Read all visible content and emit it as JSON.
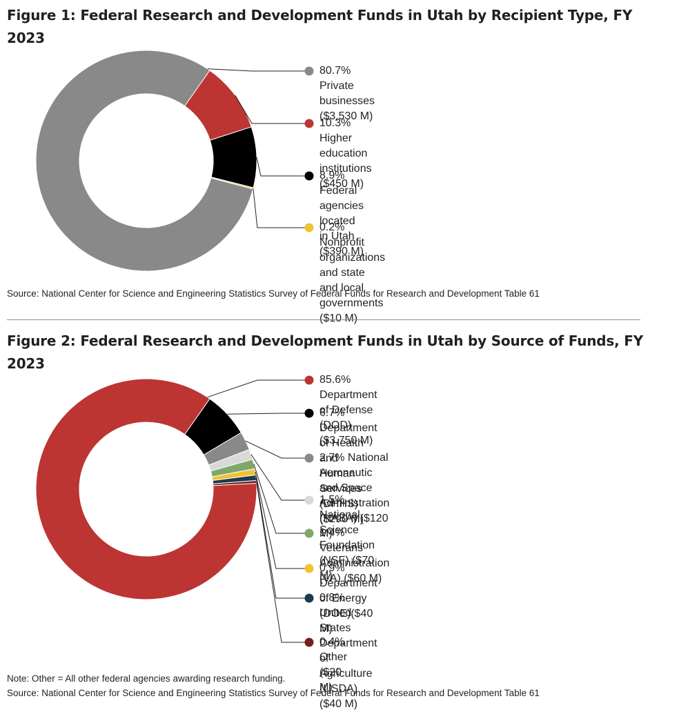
{
  "figure1": {
    "title": "Figure 1: Federal Research and Development Funds in Utah by Recipient Type, FY 2023",
    "source": "Source: National Center for Science and Engineering Statistics Survey of Federal Funds for Research and Development Table 61"
  },
  "figure2": {
    "title": "Figure 2: Federal Research and Development Funds in Utah by Source of Funds, FY 2023",
    "note": "Note: Other = All other federal agencies awarding research funding.",
    "source": "Source: National Center for Science and Engineering Statistics Survey of Federal Funds for Research and Development Table 61"
  },
  "chart_data": [
    {
      "type": "pie",
      "title": "Figure 1: Federal Research and Development Funds in Utah by Recipient Type, FY 2023",
      "donut": true,
      "legend": "right",
      "slices": [
        {
          "label": "80.7% Private businesses ($3,530 M)",
          "percent": 80.7,
          "value_musd": 3530,
          "color": "#898989"
        },
        {
          "label": "10.3% Higher education institutions  ($450 M)",
          "percent": 10.3,
          "value_musd": 450,
          "color": "#bc3533"
        },
        {
          "label": "8.9% Federal agencies located in Utah ($390 M)",
          "percent": 8.9,
          "value_musd": 390,
          "color": "#000000"
        },
        {
          "label": "0.2% Nonprofit organizations and state\nand local governments ($10 M)",
          "percent": 0.2,
          "value_musd": 10,
          "color": "#f1c232"
        }
      ]
    },
    {
      "type": "pie",
      "title": "Figure 2: Federal Research and Development Funds in Utah by Source of Funds, FY 2023",
      "donut": true,
      "legend": "right",
      "slices": [
        {
          "label": "85.6% Department of Defense (DOD) ($3,750 M)",
          "percent": 85.6,
          "value_musd": 3750,
          "color": "#bc3533"
        },
        {
          "label": "6.7% Department of Health and\nHuman Services (DHHS) ($290 M)",
          "percent": 6.7,
          "value_musd": 290,
          "color": "#000000"
        },
        {
          "label": "2.7% National Aeronautic and Space\nAdministration (NASA) ($120 M)",
          "percent": 2.7,
          "value_musd": 120,
          "color": "#898989"
        },
        {
          "label": "1.5% National Science Foundation (NSF) ($70 M)",
          "percent": 1.5,
          "value_musd": 70,
          "color": "#d9d9d9"
        },
        {
          "label": "1.4% Veterans Administration (VA) ($60 M)",
          "percent": 1.4,
          "value_musd": 60,
          "color": "#7fa868"
        },
        {
          "label": "0.9% Department of Energy (DOE)($40 M)",
          "percent": 0.9,
          "value_musd": 40,
          "color": "#f1c232"
        },
        {
          "label": "0.8% United States Department of\nAgriculture (USDA) ($40 M)",
          "percent": 0.8,
          "value_musd": 40,
          "color": "#1c3a4f"
        },
        {
          "label": "0.4% Other ($20 M)",
          "percent": 0.4,
          "value_musd": 20,
          "color": "#7a1e1e"
        }
      ]
    }
  ]
}
